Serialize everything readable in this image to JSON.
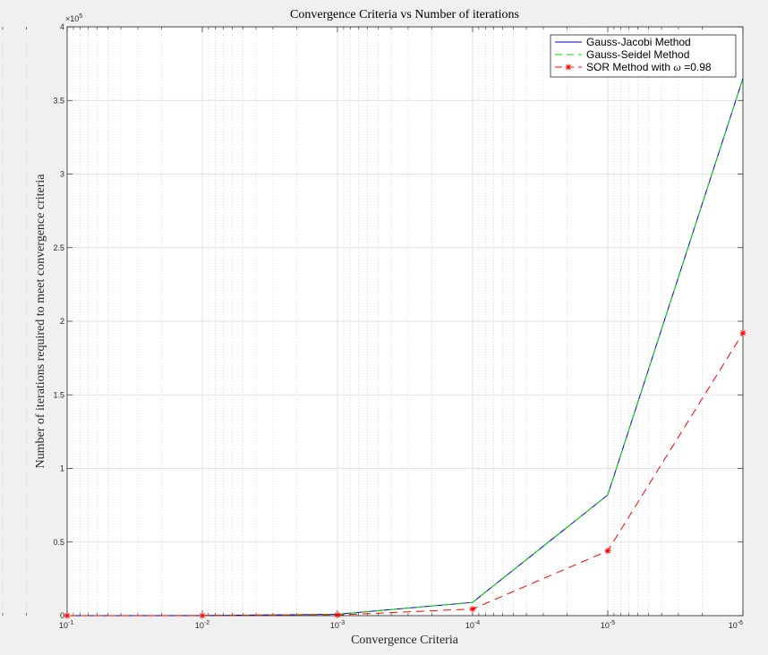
{
  "chart_data": {
    "type": "line",
    "title": "Convergence Criteria vs Number of iterations",
    "xlabel": "Convergence Criteria",
    "ylabel": "Number of iterations required to meet convergence criteria",
    "x_scale": "log",
    "x_direction": "reverse",
    "x": [
      0.1,
      0.01,
      0.001,
      0.0001,
      1e-05,
      1e-06
    ],
    "xlim": [
      0.1,
      1e-06
    ],
    "ylim": [
      0,
      400000
    ],
    "y_exponent_label": "×10",
    "y_exponent_power": "5",
    "x_ticks": [
      {
        "value": 0.1,
        "base": "10",
        "exp": "-1"
      },
      {
        "value": 0.01,
        "base": "10",
        "exp": "-2"
      },
      {
        "value": 0.001,
        "base": "10",
        "exp": "-3"
      },
      {
        "value": 0.0001,
        "base": "10",
        "exp": "-4"
      },
      {
        "value": 1e-05,
        "base": "10",
        "exp": "-5"
      },
      {
        "value": 1e-06,
        "base": "10",
        "exp": "-6"
      }
    ],
    "y_ticks": [
      {
        "value": 0,
        "label": "0"
      },
      {
        "value": 50000,
        "label": "0.5"
      },
      {
        "value": 100000,
        "label": "1"
      },
      {
        "value": 150000,
        "label": "1.5"
      },
      {
        "value": 200000,
        "label": "2"
      },
      {
        "value": 250000,
        "label": "2.5"
      },
      {
        "value": 300000,
        "label": "3"
      },
      {
        "value": 350000,
        "label": "3.5"
      },
      {
        "value": 400000,
        "label": "4"
      }
    ],
    "grid": true,
    "minor_grid": true,
    "legend_position": "top-right",
    "series": [
      {
        "name": "Gauss-Jacobi Method",
        "legend_prefix": "Gauss-Jacobi Method",
        "legend_omega": "",
        "legend_suffix": "",
        "values": [
          0,
          50,
          900,
          9000,
          82000,
          365000
        ],
        "color": "#0000cc",
        "dash": "solid",
        "marker": "none"
      },
      {
        "name": "Gauss-Seidel Method",
        "legend_prefix": "Gauss-Seidel Method",
        "legend_omega": "",
        "legend_suffix": "",
        "values": [
          0,
          50,
          900,
          9000,
          82000,
          365000
        ],
        "color": "#00dd00",
        "dash": "dashed",
        "marker": "none"
      },
      {
        "name": "SOR Method with ω =0.98",
        "legend_prefix": "SOR Method with ",
        "legend_omega": "ω",
        "legend_suffix": " =0.98",
        "values": [
          0,
          30,
          450,
          4500,
          44000,
          192000
        ],
        "color": "#ff0000",
        "dash": "dashed",
        "marker": "asterisk"
      }
    ]
  }
}
